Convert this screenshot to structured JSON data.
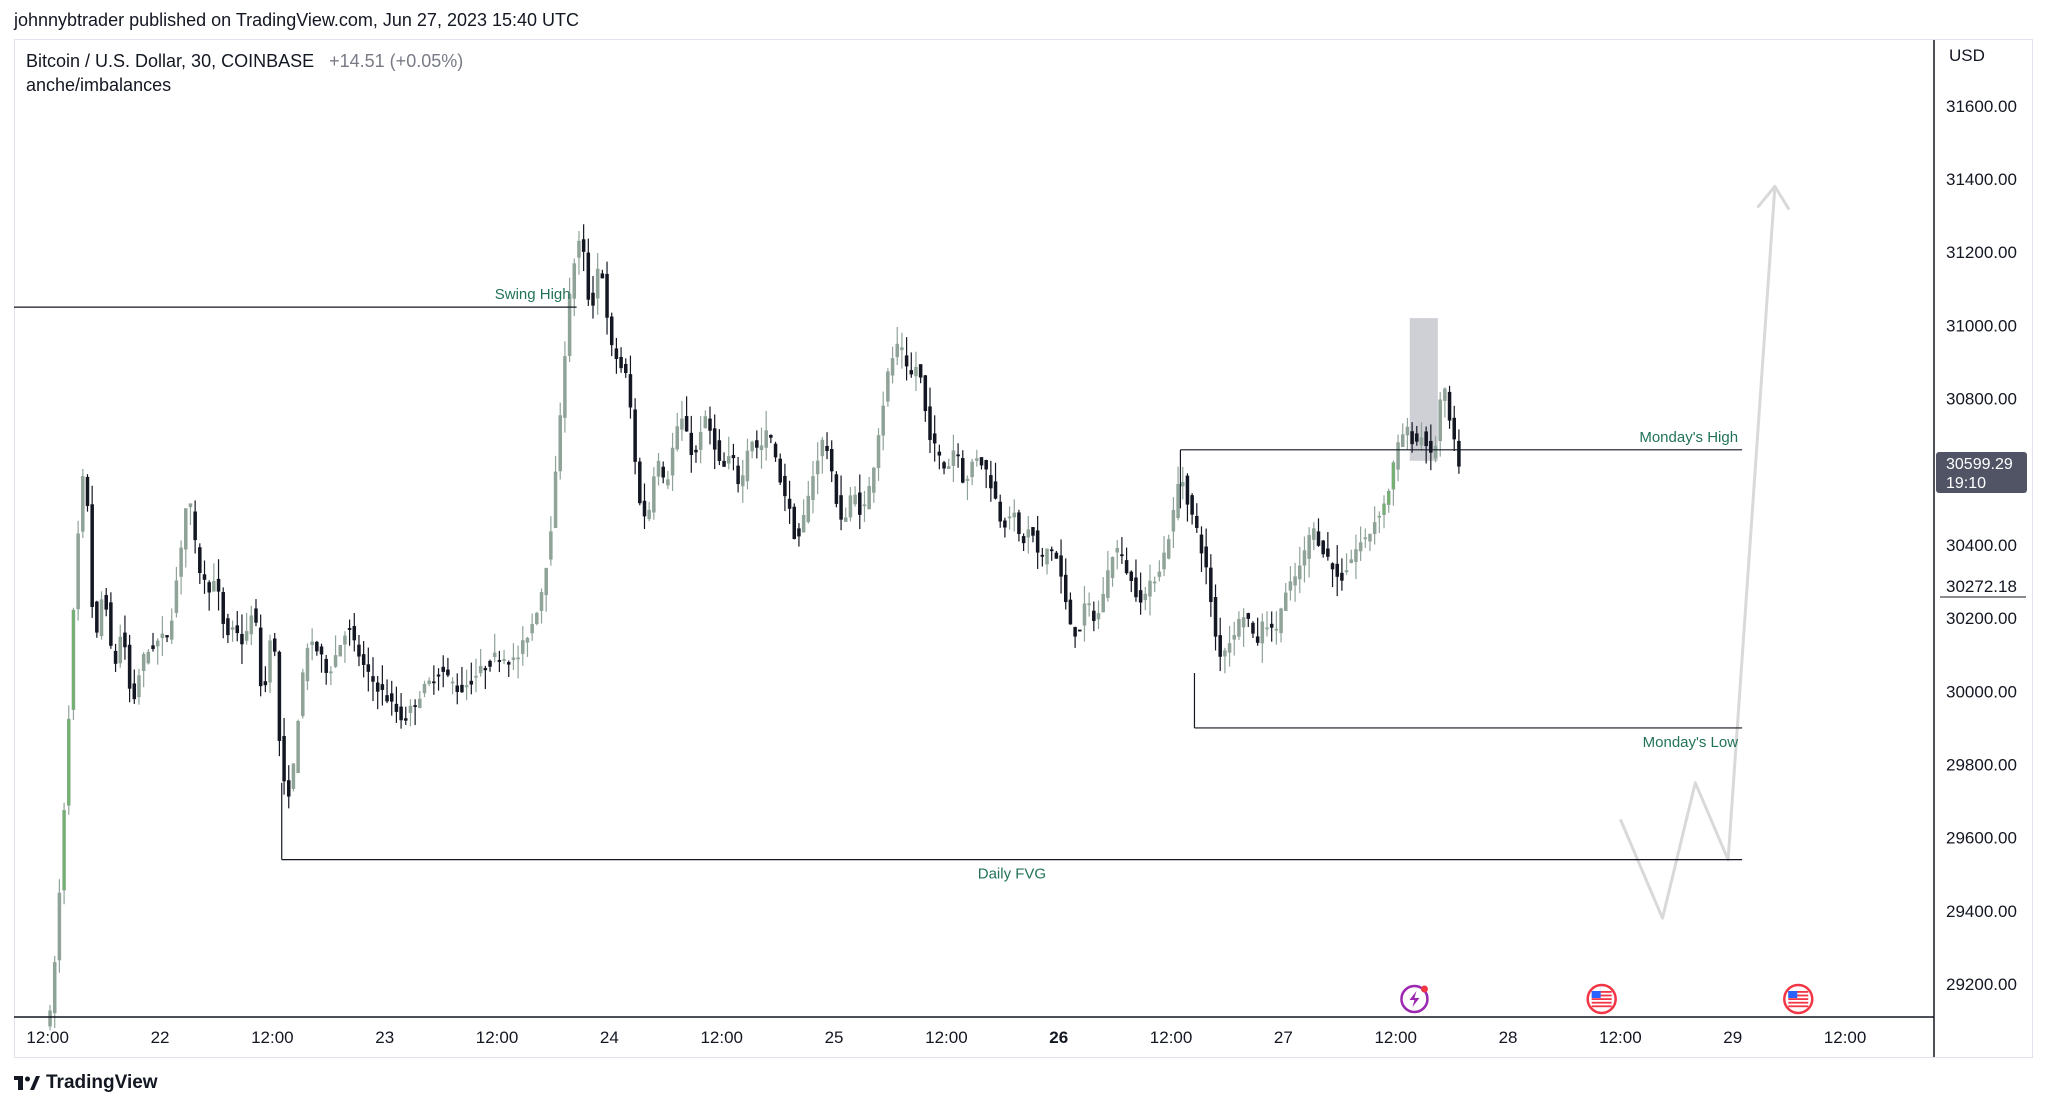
{
  "header": {
    "published_line": "johnnybtrader published on TradingView.com, Jun 27, 2023 15:40 UTC"
  },
  "chart_header": {
    "symbol": "Bitcoin / U.S. Dollar, 30, COINBASE",
    "change": "+14.51 (+0.05%)",
    "indicator": "anche/imbalances"
  },
  "price_axis": {
    "currency": "USD",
    "current_price": "30599.29",
    "countdown": "19:10",
    "crosshair_price": "30272.18"
  },
  "footer": {
    "brand": "TradingView"
  },
  "chart_data": {
    "type": "candlestick",
    "symbol": "BTCUSD",
    "interval": "30",
    "yaxis": {
      "ticks": [
        29200,
        29400,
        29600,
        29800,
        30000,
        30200,
        30400,
        30600,
        30800,
        31000,
        31200,
        31400,
        31600
      ],
      "tick_labels": [
        "29200.00",
        "29400.00",
        "29600.00",
        "29800.00",
        "30000.00",
        "30200.00",
        "30400.00",
        "30600.00",
        "30800.00",
        "31000.00",
        "31200.00",
        "31400.00",
        "31600.00"
      ],
      "ylim": [
        29110,
        31780
      ]
    },
    "xaxis": {
      "ticks": [
        {
          "label": "12:00",
          "t": 0,
          "bold": false
        },
        {
          "label": "22",
          "t": 12,
          "bold": false
        },
        {
          "label": "12:00",
          "t": 24,
          "bold": false
        },
        {
          "label": "23",
          "t": 36,
          "bold": false
        },
        {
          "label": "12:00",
          "t": 48,
          "bold": false
        },
        {
          "label": "24",
          "t": 60,
          "bold": false
        },
        {
          "label": "12:00",
          "t": 72,
          "bold": false
        },
        {
          "label": "25",
          "t": 84,
          "bold": false
        },
        {
          "label": "12:00",
          "t": 96,
          "bold": false
        },
        {
          "label": "26",
          "t": 108,
          "bold": true
        },
        {
          "label": "12:00",
          "t": 120,
          "bold": false
        },
        {
          "label": "27",
          "t": 132,
          "bold": false
        },
        {
          "label": "12:00",
          "t": 144,
          "bold": false
        },
        {
          "label": "28",
          "t": 156,
          "bold": false
        },
        {
          "label": "12:00",
          "t": 168,
          "bold": false
        },
        {
          "label": "29",
          "t": 180,
          "bold": false
        },
        {
          "label": "12:00",
          "t": 192,
          "bold": false
        }
      ],
      "xlim": [
        -3.6,
        201.5
      ]
    },
    "price_path": [
      [
        0.2,
        29100
      ],
      [
        1,
        29330
      ],
      [
        2,
        29800
      ],
      [
        3,
        30350
      ],
      [
        4,
        30650
      ],
      [
        5,
        30100
      ],
      [
        6,
        30300
      ],
      [
        7,
        30050
      ],
      [
        8,
        30180
      ],
      [
        9,
        29950
      ],
      [
        10,
        30080
      ],
      [
        11,
        30120
      ],
      [
        13,
        30160
      ],
      [
        14,
        30350
      ],
      [
        15,
        30550
      ],
      [
        16,
        30350
      ],
      [
        17,
        30280
      ],
      [
        18,
        30300
      ],
      [
        19,
        30150
      ],
      [
        20,
        30180
      ],
      [
        21,
        30120
      ],
      [
        22,
        30250
      ],
      [
        23,
        29950
      ],
      [
        24,
        30220
      ],
      [
        25,
        29750
      ],
      [
        26,
        29720
      ],
      [
        27,
        30000
      ],
      [
        28,
        30150
      ],
      [
        30,
        30050
      ],
      [
        32,
        30180
      ],
      [
        34,
        30050
      ],
      [
        36,
        29990
      ],
      [
        38,
        29920
      ],
      [
        40,
        30000
      ],
      [
        42,
        30060
      ],
      [
        44,
        30000
      ],
      [
        46,
        30050
      ],
      [
        48,
        30100
      ],
      [
        50,
        30080
      ],
      [
        52,
        30200
      ],
      [
        53,
        30300
      ],
      [
        54,
        30500
      ],
      [
        55,
        30850
      ],
      [
        56,
        31150
      ],
      [
        57,
        31250
      ],
      [
        58,
        31020
      ],
      [
        59,
        31200
      ],
      [
        60,
        30950
      ],
      [
        61,
        30900
      ],
      [
        62,
        30850
      ],
      [
        63,
        30550
      ],
      [
        64,
        30450
      ],
      [
        65,
        30650
      ],
      [
        66,
        30550
      ],
      [
        67,
        30700
      ],
      [
        68,
        30750
      ],
      [
        69,
        30620
      ],
      [
        70,
        30750
      ],
      [
        71,
        30700
      ],
      [
        72,
        30600
      ],
      [
        73,
        30650
      ],
      [
        74,
        30550
      ],
      [
        75,
        30700
      ],
      [
        76,
        30650
      ],
      [
        77,
        30720
      ],
      [
        78,
        30600
      ],
      [
        79,
        30520
      ],
      [
        80,
        30400
      ],
      [
        81,
        30500
      ],
      [
        82,
        30620
      ],
      [
        83,
        30700
      ],
      [
        84,
        30550
      ],
      [
        85,
        30450
      ],
      [
        86,
        30550
      ],
      [
        87,
        30480
      ],
      [
        88,
        30580
      ],
      [
        89,
        30750
      ],
      [
        90,
        30900
      ],
      [
        91,
        30950
      ],
      [
        92,
        30850
      ],
      [
        93,
        30900
      ],
      [
        94,
        30720
      ],
      [
        95,
        30650
      ],
      [
        96,
        30600
      ],
      [
        97,
        30680
      ],
      [
        98,
        30550
      ],
      [
        99,
        30650
      ],
      [
        100,
        30620
      ],
      [
        101,
        30550
      ],
      [
        102,
        30450
      ],
      [
        103,
        30500
      ],
      [
        104,
        30400
      ],
      [
        105,
        30450
      ],
      [
        106,
        30350
      ],
      [
        107,
        30400
      ],
      [
        108,
        30350
      ],
      [
        109,
        30200
      ],
      [
        110,
        30150
      ],
      [
        111,
        30250
      ],
      [
        112,
        30180
      ],
      [
        113,
        30300
      ],
      [
        114,
        30400
      ],
      [
        115,
        30350
      ],
      [
        116,
        30280
      ],
      [
        117,
        30250
      ],
      [
        118,
        30300
      ],
      [
        119,
        30350
      ],
      [
        120,
        30450
      ],
      [
        121,
        30600
      ],
      [
        122,
        30500
      ],
      [
        123,
        30420
      ],
      [
        124,
        30300
      ],
      [
        125,
        30100
      ],
      [
        126,
        30120
      ],
      [
        127,
        30180
      ],
      [
        128,
        30220
      ],
      [
        129,
        30120
      ],
      [
        130,
        30200
      ],
      [
        131,
        30150
      ],
      [
        132,
        30250
      ],
      [
        133,
        30300
      ],
      [
        134,
        30350
      ],
      [
        135,
        30450
      ],
      [
        136,
        30400
      ],
      [
        137,
        30350
      ],
      [
        138,
        30300
      ],
      [
        139,
        30350
      ],
      [
        140,
        30400
      ],
      [
        141,
        30420
      ],
      [
        142,
        30480
      ],
      [
        143,
        30520
      ],
      [
        144,
        30650
      ],
      [
        145,
        30720
      ],
      [
        146,
        30680
      ],
      [
        147,
        30700
      ],
      [
        148,
        30620
      ],
      [
        149,
        30850
      ],
      [
        150,
        30700
      ],
      [
        151,
        30599
      ]
    ],
    "annotations": {
      "swing_high": {
        "label": "Swing High",
        "price": 31050,
        "t_start": -3.6,
        "t_end": 56.5
      },
      "mondays_high": {
        "label": "Monday's High",
        "price": 30660,
        "t_start": 121,
        "t_end": 181
      },
      "mondays_low": {
        "label": "Monday's Low",
        "price": 29900,
        "t_start": 122.5,
        "t_end": 181
      },
      "daily_fvg": {
        "label": "Daily FVG",
        "price": 29540,
        "t_start": 25,
        "t_end": 181
      },
      "highlight_box": {
        "t_start": 145.5,
        "t_end": 148.5,
        "price_low": 30630,
        "price_high": 31020
      },
      "projection_path": [
        [
          168,
          29650
        ],
        [
          172.5,
          29380
        ],
        [
          176,
          29750
        ],
        [
          179.5,
          29540
        ],
        [
          184.5,
          31380
        ]
      ]
    },
    "events": [
      {
        "icon": "lightning-event-icon",
        "t": 146
      },
      {
        "icon": "us-flag-event-icon",
        "t": 166
      },
      {
        "icon": "us-flag-event-icon",
        "t": 187
      }
    ],
    "colors": {
      "up": "#8fa398",
      "down": "#131722",
      "green_bar": "#6fb46a",
      "line": "#131722",
      "label_text": "#22725a",
      "highlight": "#cacbd2",
      "projection": "#d9d9d9",
      "price_label_bg": "#505465"
    }
  }
}
